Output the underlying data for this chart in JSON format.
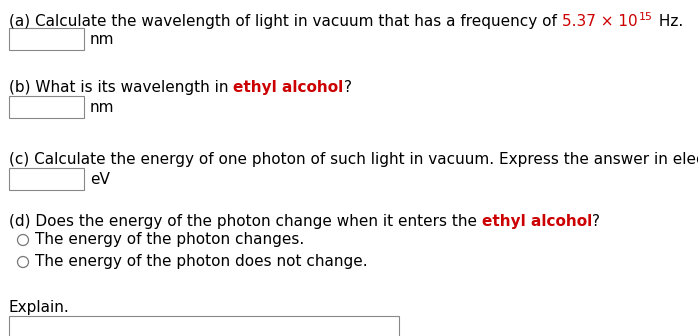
{
  "bg_color": "#ffffff",
  "text_color": "#000000",
  "red_color": "#cc0000",
  "font_size": 11,
  "font_family": "DejaVu Sans",
  "part_a_pre": "(a) Calculate the wavelength of light in vacuum that has a frequency of ",
  "part_a_red": "5.37 × 10",
  "part_a_sup": "15",
  "part_a_post": " Hz.",
  "part_a_unit": "nm",
  "part_b_pre": "(b) What is its wavelength in ",
  "part_b_red": "ethyl alcohol",
  "part_b_post": "?",
  "part_b_unit": "nm",
  "part_c_text": "(c) Calculate the energy of one photon of such light in vacuum. Express the answer in electron volts.",
  "part_c_unit": "eV",
  "part_d_pre": "(d) Does the energy of the photon change when it enters the ",
  "part_d_red": "ethyl alcohol",
  "part_d_post": "?",
  "part_d_opt1": "The energy of the photon changes.",
  "part_d_opt2": "The energy of the photon does not change.",
  "explain_label": "Explain.",
  "input_box_color": "#ffffff",
  "input_box_edge": "#888888"
}
